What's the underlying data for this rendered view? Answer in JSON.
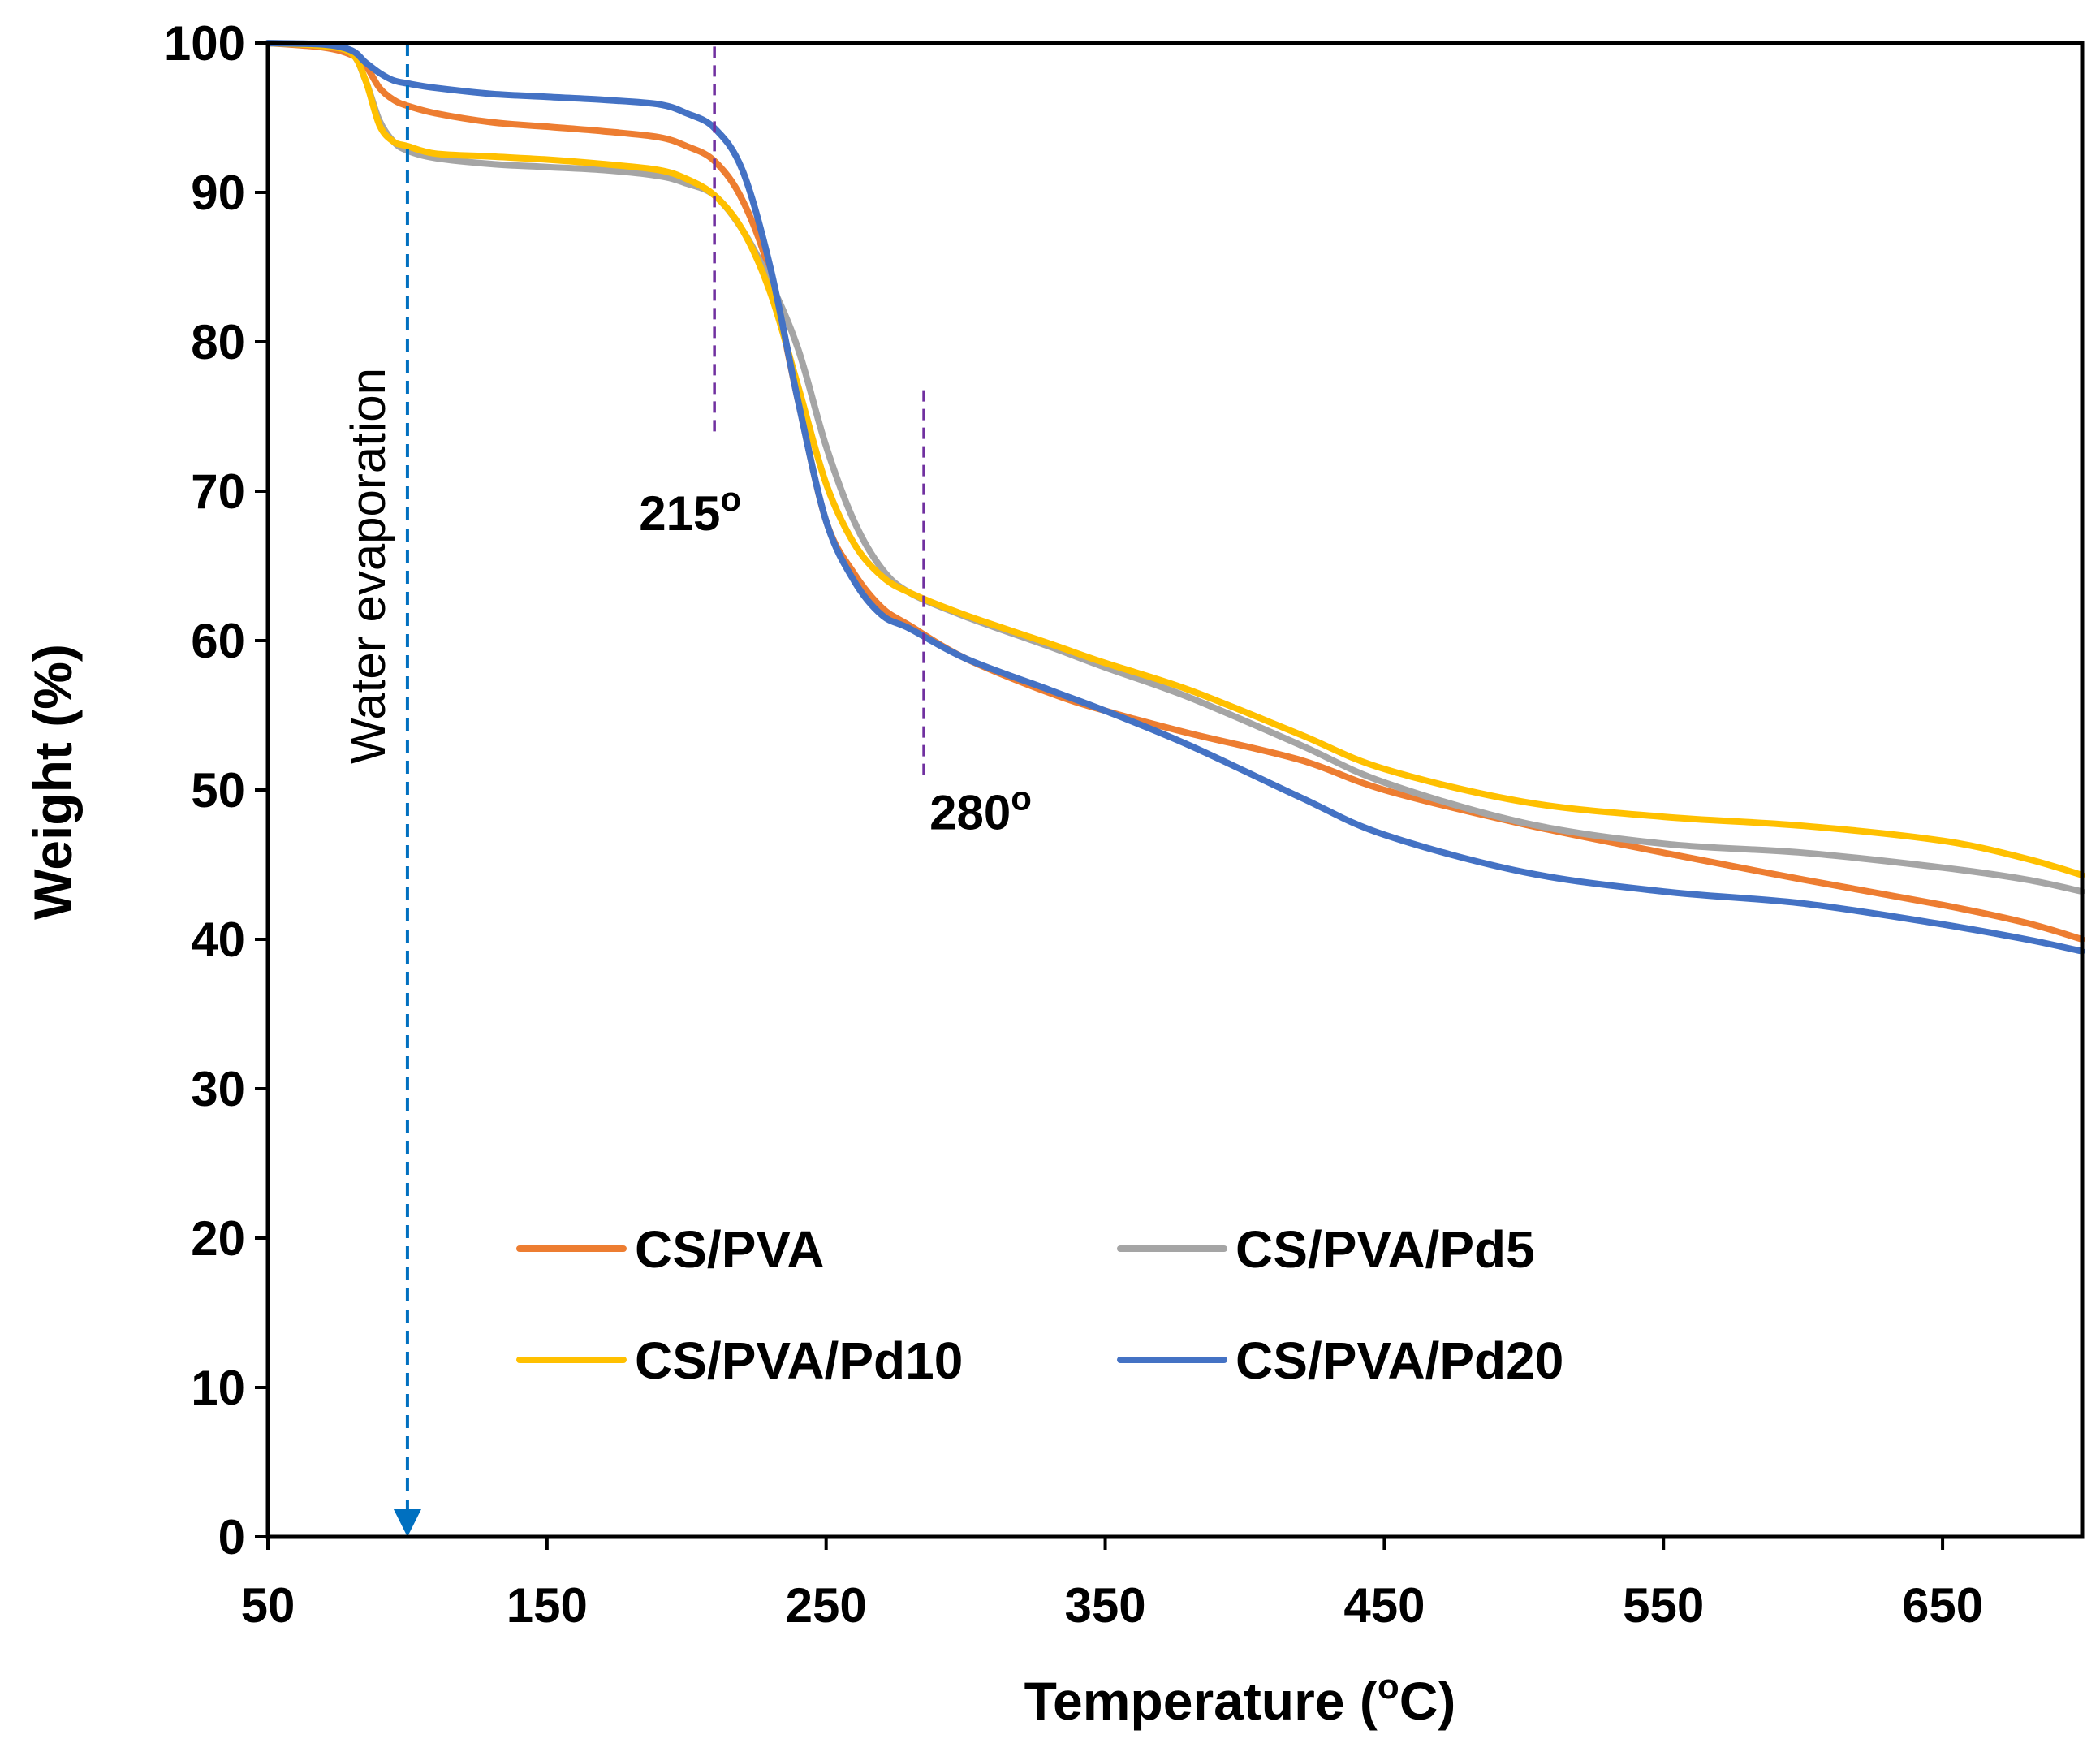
{
  "chart_data": {
    "type": "line",
    "title": "",
    "xlabel": "Temperature (",
    "xlabel_sup": "o",
    "xlabel_end": "C)",
    "ylabel": "Weight (%)",
    "xlim": [
      50,
      700
    ],
    "ylim": [
      0,
      100
    ],
    "x_ticks": [
      50,
      150,
      250,
      350,
      450,
      550,
      650
    ],
    "y_ticks": [
      0,
      10,
      20,
      30,
      40,
      50,
      60,
      70,
      80,
      90,
      100
    ],
    "grid": false,
    "legend_position": "bottom-center",
    "series": [
      {
        "name": "CS/PVA",
        "color": "#ED7D31",
        "points": [
          [
            50,
            100
          ],
          [
            70,
            99.7
          ],
          [
            80,
            99.2
          ],
          [
            85,
            98.5
          ],
          [
            90,
            97
          ],
          [
            95,
            96.2
          ],
          [
            100,
            95.8
          ],
          [
            110,
            95.3
          ],
          [
            130,
            94.7
          ],
          [
            150,
            94.4
          ],
          [
            170,
            94.1
          ],
          [
            190,
            93.7
          ],
          [
            200,
            93.1
          ],
          [
            210,
            92.1
          ],
          [
            220,
            89.5
          ],
          [
            230,
            84.5
          ],
          [
            240,
            76
          ],
          [
            250,
            68
          ],
          [
            260,
            64.5
          ],
          [
            270,
            62.2
          ],
          [
            280,
            61
          ],
          [
            300,
            58.8
          ],
          [
            330,
            56.5
          ],
          [
            350,
            55.3
          ],
          [
            380,
            53.8
          ],
          [
            420,
            52
          ],
          [
            450,
            50
          ],
          [
            500,
            47.7
          ],
          [
            550,
            45.8
          ],
          [
            600,
            44
          ],
          [
            650,
            42.3
          ],
          [
            680,
            41.1
          ],
          [
            700,
            40
          ]
        ]
      },
      {
        "name": "CS/PVA/Pd5",
        "color": "#A5A5A5",
        "points": [
          [
            50,
            100
          ],
          [
            70,
            99.8
          ],
          [
            80,
            99.3
          ],
          [
            85,
            97.5
          ],
          [
            90,
            94.8
          ],
          [
            95,
            93.4
          ],
          [
            100,
            92.8
          ],
          [
            110,
            92.3
          ],
          [
            130,
            91.9
          ],
          [
            150,
            91.7
          ],
          [
            170,
            91.5
          ],
          [
            190,
            91.1
          ],
          [
            200,
            90.6
          ],
          [
            210,
            89.8
          ],
          [
            220,
            87.5
          ],
          [
            230,
            84
          ],
          [
            240,
            79.5
          ],
          [
            250,
            73
          ],
          [
            260,
            68
          ],
          [
            270,
            64.8
          ],
          [
            280,
            63.2
          ],
          [
            300,
            61.6
          ],
          [
            330,
            59.6
          ],
          [
            350,
            58.2
          ],
          [
            380,
            56.2
          ],
          [
            420,
            53
          ],
          [
            450,
            50.5
          ],
          [
            500,
            47.8
          ],
          [
            550,
            46.4
          ],
          [
            600,
            45.8
          ],
          [
            650,
            44.8
          ],
          [
            680,
            44
          ],
          [
            700,
            43.2
          ]
        ]
      },
      {
        "name": "CS/PVA/Pd10",
        "color": "#FFC000",
        "points": [
          [
            50,
            100
          ],
          [
            70,
            99.8
          ],
          [
            80,
            99.3
          ],
          [
            85,
            97.5
          ],
          [
            90,
            94.5
          ],
          [
            95,
            93.4
          ],
          [
            100,
            93.1
          ],
          [
            110,
            92.6
          ],
          [
            130,
            92.4
          ],
          [
            150,
            92.2
          ],
          [
            170,
            91.9
          ],
          [
            190,
            91.5
          ],
          [
            200,
            90.9
          ],
          [
            210,
            89.8
          ],
          [
            220,
            87.5
          ],
          [
            230,
            83.3
          ],
          [
            240,
            77
          ],
          [
            250,
            70.5
          ],
          [
            260,
            66.5
          ],
          [
            270,
            64.3
          ],
          [
            280,
            63.2
          ],
          [
            300,
            61.7
          ],
          [
            330,
            59.8
          ],
          [
            350,
            58.5
          ],
          [
            380,
            56.7
          ],
          [
            420,
            53.7
          ],
          [
            450,
            51.4
          ],
          [
            500,
            49.2
          ],
          [
            550,
            48.2
          ],
          [
            600,
            47.6
          ],
          [
            650,
            46.6
          ],
          [
            680,
            45.4
          ],
          [
            700,
            44.3
          ]
        ]
      },
      {
        "name": "CS/PVA/Pd20",
        "color": "#4472C4",
        "points": [
          [
            50,
            100
          ],
          [
            70,
            99.9
          ],
          [
            80,
            99.5
          ],
          [
            85,
            98.7
          ],
          [
            90,
            98
          ],
          [
            95,
            97.5
          ],
          [
            100,
            97.3
          ],
          [
            110,
            97
          ],
          [
            130,
            96.6
          ],
          [
            150,
            96.4
          ],
          [
            170,
            96.2
          ],
          [
            190,
            95.9
          ],
          [
            200,
            95.3
          ],
          [
            210,
            94.3
          ],
          [
            220,
            91.5
          ],
          [
            230,
            85
          ],
          [
            240,
            76
          ],
          [
            250,
            68
          ],
          [
            260,
            64
          ],
          [
            270,
            61.7
          ],
          [
            280,
            60.8
          ],
          [
            300,
            58.8
          ],
          [
            330,
            56.7
          ],
          [
            350,
            55.3
          ],
          [
            380,
            53
          ],
          [
            420,
            49.5
          ],
          [
            450,
            47
          ],
          [
            500,
            44.5
          ],
          [
            550,
            43.2
          ],
          [
            600,
            42.4
          ],
          [
            650,
            41
          ],
          [
            680,
            40
          ],
          [
            700,
            39.2
          ]
        ]
      }
    ],
    "annotations": {
      "line_215": {
        "x": 210,
        "y_from": 74,
        "y_to": 100,
        "label": "215",
        "label_sup": "o",
        "color": "#7030A0"
      },
      "line_280": {
        "x": 285,
        "y_from": 51,
        "y_to": 77,
        "label": "280",
        "label_sup": "o",
        "color": "#7030A0"
      },
      "water": {
        "x": 100,
        "y_from": 100,
        "y_to": 0,
        "label": "Water evaporation",
        "color": "#0070C0"
      }
    }
  }
}
